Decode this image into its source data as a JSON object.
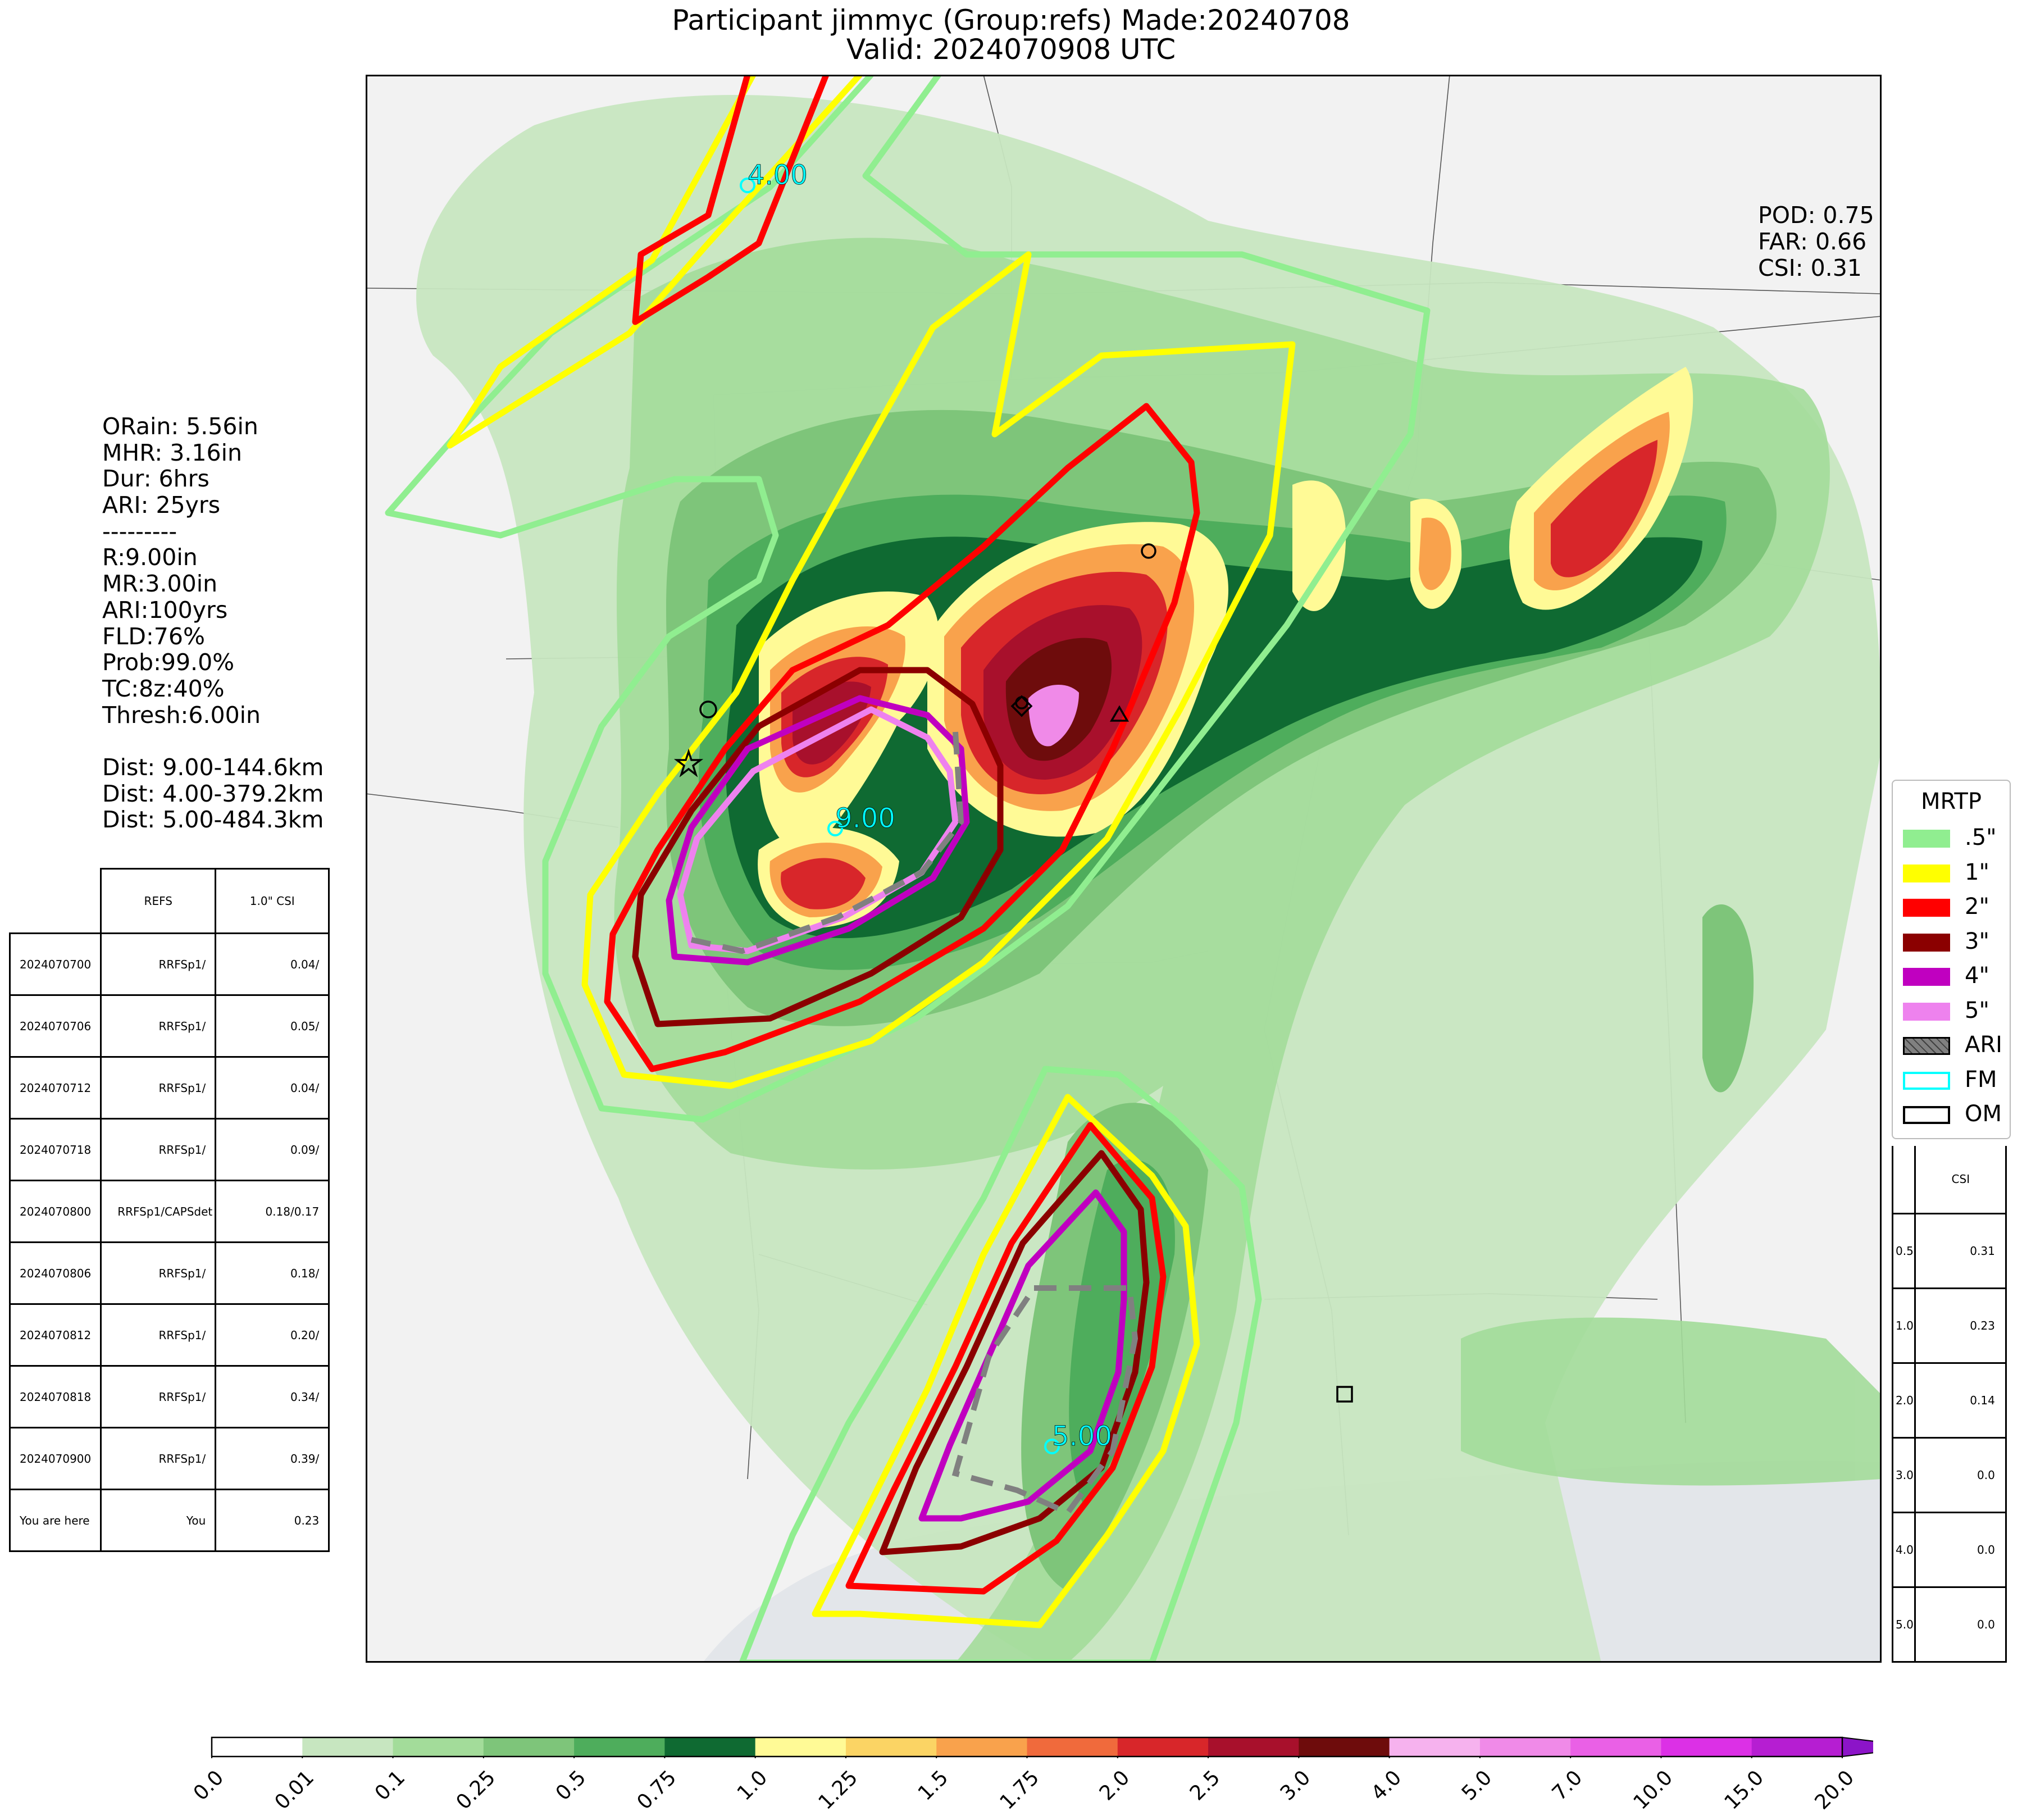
{
  "title": {
    "line1": "Participant jimmyc (Group:refs) Made:20240708",
    "line2": "Valid: 2024070908 UTC"
  },
  "stats": [
    "POD: 0.75",
    "FAR: 0.66",
    "CSI: 0.31"
  ],
  "info": [
    "ORain: 5.56in",
    "MHR: 3.16in",
    "Dur: 6hrs",
    "ARI: 25yrs",
    "---------",
    "R:9.00in",
    "MR:3.00in",
    "ARI:100yrs",
    "FLD:76%",
    "Prob:99.0%",
    "TC:8z:40%",
    "Thresh:6.00in",
    "",
    "Dist: 9.00-144.6km",
    "Dist: 4.00-379.2km",
    "Dist: 5.00-484.3km"
  ],
  "csi_table": {
    "headers": [
      "",
      "REFS",
      "1.0\" CSI"
    ],
    "rows": [
      [
        "2024070700",
        "RRFSp1/",
        "0.04/"
      ],
      [
        "2024070706",
        "RRFSp1/",
        "0.05/"
      ],
      [
        "2024070712",
        "RRFSp1/",
        "0.04/"
      ],
      [
        "2024070718",
        "RRFSp1/",
        "0.09/"
      ],
      [
        "2024070800",
        "RRFSp1/CAPSdet",
        "0.18/0.17"
      ],
      [
        "2024070806",
        "RRFSp1/",
        "0.18/"
      ],
      [
        "2024070812",
        "RRFSp1/",
        "0.20/"
      ],
      [
        "2024070818",
        "RRFSp1/",
        "0.34/"
      ],
      [
        "2024070900",
        "RRFSp1/",
        "0.39/"
      ],
      [
        "You are here",
        "You",
        "0.23"
      ]
    ]
  },
  "threshold_table": {
    "header": "CSI",
    "rows": [
      [
        "0.5",
        "0.31"
      ],
      [
        "1.0",
        "0.23"
      ],
      [
        "2.0",
        "0.14"
      ],
      [
        "3.0",
        "0.0"
      ],
      [
        "4.0",
        "0.0"
      ],
      [
        "5.0",
        "0.0"
      ]
    ]
  },
  "legend": {
    "title": "MRTP",
    "items": [
      {
        "label": ".5\"",
        "color": "#90ee90",
        "kind": "fill"
      },
      {
        "label": "1\"",
        "color": "#ffff00",
        "kind": "fill"
      },
      {
        "label": "2\"",
        "color": "#ff0000",
        "kind": "fill"
      },
      {
        "label": "3\"",
        "color": "#8b0000",
        "kind": "fill"
      },
      {
        "label": "4\"",
        "color": "#c000c0",
        "kind": "fill"
      },
      {
        "label": "5\"",
        "color": "#ee82ee",
        "kind": "fill"
      },
      {
        "label": "ARI",
        "color": "#808080",
        "kind": "hatch"
      },
      {
        "label": "FM",
        "color": "#00ffff",
        "kind": "outline"
      },
      {
        "label": "OM",
        "color": "#000000",
        "kind": "outline"
      }
    ]
  },
  "map_labels": [
    "4.00",
    "9.00",
    "5.00"
  ],
  "colorbar": {
    "ticks": [
      "0.0",
      "0.01",
      "0.1",
      "0.25",
      "0.5",
      "0.75",
      "1.0",
      "1.25",
      "1.5",
      "1.75",
      "2.0",
      "2.5",
      "3.0",
      "4.0",
      "5.0",
      "7.0",
      "10.0",
      "15.0",
      "20.0"
    ],
    "colors": [
      "#ffffff",
      "#c7e6c0",
      "#a3dc9a",
      "#7ec57a",
      "#4ead5c",
      "#0f6a32",
      "#fffa96",
      "#fbd464",
      "#f9a24c",
      "#f06a3c",
      "#d8262a",
      "#a8102c",
      "#6e0c0c",
      "#f6b2ee",
      "#f08ae8",
      "#ea60e6",
      "#dc30e6",
      "#b61ed2",
      "#8c14c8"
    ]
  }
}
